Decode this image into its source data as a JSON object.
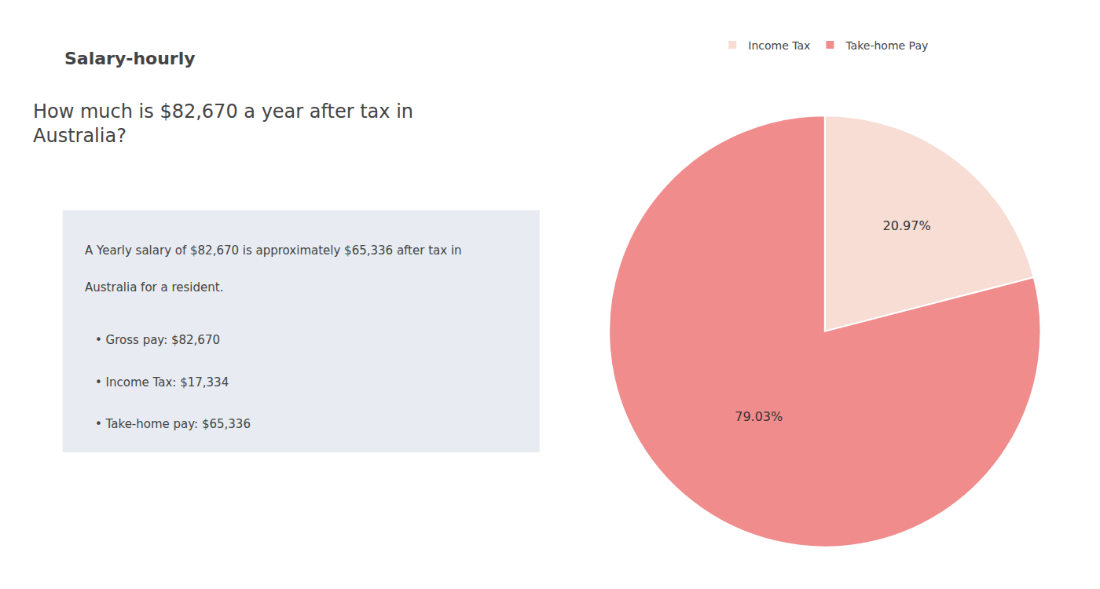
{
  "chart_data": {
    "type": "pie",
    "title": "How much is $82,670 a year after tax in\nAustralia?",
    "categories": [
      "Income Tax",
      "Take-home Pay"
    ],
    "values": [
      20.97,
      79.03
    ],
    "value_labels": [
      "20.97%",
      "79.03%"
    ],
    "colors": [
      "#f7ddd4",
      "#f08c8c"
    ],
    "data_labels": true,
    "legend": "top",
    "annotations": [
      "Salary-hourly",
      "A Yearly salary of $82,670 is approximately $65,336 after tax in",
      "Australia for a resident.",
      "• Gross pay: $82,670",
      "• Income Tax: $17,334",
      "• Take-home pay: $65,336"
    ]
  }
}
